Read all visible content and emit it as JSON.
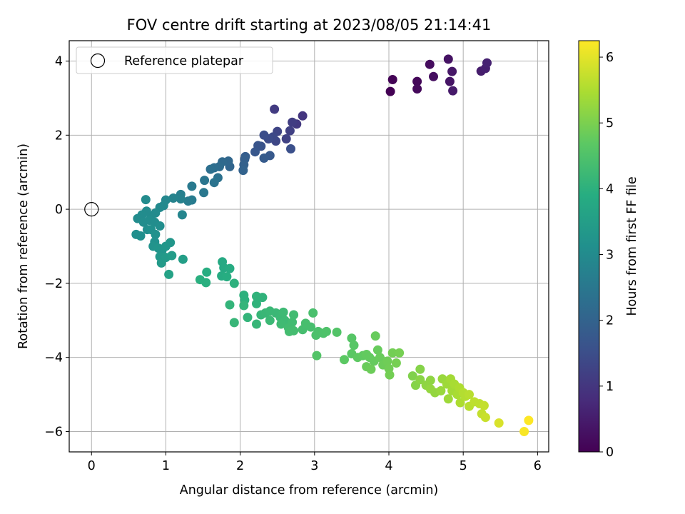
{
  "chart_data": {
    "type": "scatter",
    "title": "FOV centre drift starting at 2023/08/05 21:14:41",
    "xlabel": "Angular distance from reference (arcmin)",
    "ylabel": "Rotation from reference (arcmin)",
    "xlim": [
      -0.3,
      6.15
    ],
    "ylim": [
      -6.55,
      4.55
    ],
    "xticks": [
      0,
      1,
      2,
      3,
      4,
      5,
      6
    ],
    "yticks": [
      -6,
      -4,
      -2,
      0,
      2,
      4
    ],
    "xtick_labels": [
      "0",
      "1",
      "2",
      "3",
      "4",
      "5",
      "6"
    ],
    "ytick_labels": [
      "−6",
      "−4",
      "−2",
      "0",
      "2",
      "4"
    ],
    "grid": true,
    "legend": {
      "placement": "upper-left",
      "entries": [
        {
          "label": "Reference platepar",
          "marker": "open-circle"
        }
      ]
    },
    "reference_point": {
      "x": 0,
      "y": 0
    },
    "colorbar": {
      "label": "Hours from first FF file",
      "colormap": "viridis",
      "range": [
        0,
        6.25
      ],
      "ticks": [
        0,
        1,
        2,
        3,
        4,
        5,
        6
      ],
      "tick_labels": [
        "0",
        "1",
        "2",
        "3",
        "4",
        "5",
        "6"
      ]
    },
    "points": [
      {
        "x": 4.02,
        "y": 3.18,
        "t": 0.0
      },
      {
        "x": 4.05,
        "y": 3.5,
        "t": 0.05
      },
      {
        "x": 4.38,
        "y": 3.45,
        "t": 0.1
      },
      {
        "x": 4.38,
        "y": 3.25,
        "t": 0.15
      },
      {
        "x": 4.55,
        "y": 3.91,
        "t": 0.2
      },
      {
        "x": 4.6,
        "y": 3.58,
        "t": 0.25
      },
      {
        "x": 4.8,
        "y": 4.05,
        "t": 0.3
      },
      {
        "x": 4.82,
        "y": 3.45,
        "t": 0.35
      },
      {
        "x": 4.85,
        "y": 3.72,
        "t": 0.4
      },
      {
        "x": 4.86,
        "y": 3.2,
        "t": 0.45
      },
      {
        "x": 5.24,
        "y": 3.73,
        "t": 0.5
      },
      {
        "x": 5.3,
        "y": 3.8,
        "t": 0.55
      },
      {
        "x": 5.32,
        "y": 3.95,
        "t": 0.6
      },
      {
        "x": 2.84,
        "y": 2.52,
        "t": 1.0
      },
      {
        "x": 2.76,
        "y": 2.3,
        "t": 1.05
      },
      {
        "x": 2.46,
        "y": 2.7,
        "t": 1.1
      },
      {
        "x": 2.7,
        "y": 2.35,
        "t": 1.15
      },
      {
        "x": 2.67,
        "y": 2.12,
        "t": 1.2
      },
      {
        "x": 2.62,
        "y": 1.9,
        "t": 1.25
      },
      {
        "x": 2.5,
        "y": 2.1,
        "t": 1.3
      },
      {
        "x": 2.48,
        "y": 1.84,
        "t": 1.35
      },
      {
        "x": 2.44,
        "y": 1.95,
        "t": 1.4
      },
      {
        "x": 2.38,
        "y": 1.9,
        "t": 1.45
      },
      {
        "x": 2.32,
        "y": 2.0,
        "t": 1.5
      },
      {
        "x": 2.68,
        "y": 1.63,
        "t": 1.55
      },
      {
        "x": 2.28,
        "y": 1.7,
        "t": 1.6
      },
      {
        "x": 2.24,
        "y": 1.72,
        "t": 1.65
      },
      {
        "x": 2.2,
        "y": 1.55,
        "t": 1.7
      },
      {
        "x": 2.4,
        "y": 1.45,
        "t": 1.75
      },
      {
        "x": 2.32,
        "y": 1.38,
        "t": 1.8
      },
      {
        "x": 2.07,
        "y": 1.42,
        "t": 1.85
      },
      {
        "x": 2.06,
        "y": 1.35,
        "t": 1.9
      },
      {
        "x": 2.05,
        "y": 1.2,
        "t": 1.95
      },
      {
        "x": 2.04,
        "y": 1.05,
        "t": 2.0
      },
      {
        "x": 1.86,
        "y": 1.15,
        "t": 2.05
      },
      {
        "x": 1.84,
        "y": 1.3,
        "t": 2.1
      },
      {
        "x": 1.76,
        "y": 1.28,
        "t": 2.15
      },
      {
        "x": 1.72,
        "y": 1.15,
        "t": 2.2
      },
      {
        "x": 1.65,
        "y": 1.12,
        "t": 2.25
      },
      {
        "x": 1.6,
        "y": 1.08,
        "t": 2.3
      },
      {
        "x": 1.7,
        "y": 0.85,
        "t": 2.35
      },
      {
        "x": 1.65,
        "y": 0.72,
        "t": 2.4
      },
      {
        "x": 1.52,
        "y": 0.78,
        "t": 2.45
      },
      {
        "x": 1.51,
        "y": 0.45,
        "t": 2.5
      },
      {
        "x": 1.35,
        "y": 0.62,
        "t": 2.55
      },
      {
        "x": 1.35,
        "y": 0.25,
        "t": 2.6
      },
      {
        "x": 1.3,
        "y": 0.22,
        "t": 2.65
      },
      {
        "x": 1.2,
        "y": 0.4,
        "t": 2.7
      },
      {
        "x": 1.2,
        "y": 0.28,
        "t": 2.75
      },
      {
        "x": 1.1,
        "y": 0.3,
        "t": 2.8
      },
      {
        "x": 1.22,
        "y": -0.15,
        "t": 2.85
      },
      {
        "x": 1.0,
        "y": 0.25,
        "t": 2.9
      },
      {
        "x": 0.97,
        "y": 0.1,
        "t": 2.95
      },
      {
        "x": 0.92,
        "y": 0.05,
        "t": 2.95
      },
      {
        "x": 0.73,
        "y": 0.26,
        "t": 3.0
      },
      {
        "x": 0.86,
        "y": -0.1,
        "t": 3.0
      },
      {
        "x": 0.8,
        "y": -0.2,
        "t": 3.0
      },
      {
        "x": 0.74,
        "y": -0.05,
        "t": 3.0
      },
      {
        "x": 0.68,
        "y": -0.15,
        "t": 3.02
      },
      {
        "x": 0.62,
        "y": -0.25,
        "t": 3.02
      },
      {
        "x": 0.7,
        "y": -0.35,
        "t": 3.05
      },
      {
        "x": 0.78,
        "y": -0.3,
        "t": 3.05
      },
      {
        "x": 0.85,
        "y": -0.35,
        "t": 3.05
      },
      {
        "x": 0.92,
        "y": -0.45,
        "t": 3.08
      },
      {
        "x": 0.75,
        "y": -0.55,
        "t": 3.08
      },
      {
        "x": 0.6,
        "y": -0.68,
        "t": 3.1
      },
      {
        "x": 0.66,
        "y": -0.72,
        "t": 3.1
      },
      {
        "x": 0.8,
        "y": -0.55,
        "t": 3.12
      },
      {
        "x": 0.86,
        "y": -0.68,
        "t": 3.15
      },
      {
        "x": 0.85,
        "y": -0.88,
        "t": 3.15
      },
      {
        "x": 0.83,
        "y": -1.0,
        "t": 3.2
      },
      {
        "x": 0.9,
        "y": -1.05,
        "t": 3.25
      },
      {
        "x": 0.95,
        "y": -1.1,
        "t": 3.25
      },
      {
        "x": 1.0,
        "y": -1.0,
        "t": 3.3
      },
      {
        "x": 1.06,
        "y": -0.9,
        "t": 3.3
      },
      {
        "x": 0.92,
        "y": -1.28,
        "t": 3.35
      },
      {
        "x": 0.94,
        "y": -1.45,
        "t": 3.4
      },
      {
        "x": 1.0,
        "y": -1.3,
        "t": 3.4
      },
      {
        "x": 1.08,
        "y": -1.25,
        "t": 3.45
      },
      {
        "x": 1.23,
        "y": -1.35,
        "t": 3.5
      },
      {
        "x": 1.04,
        "y": -1.76,
        "t": 3.6
      },
      {
        "x": 1.76,
        "y": -1.42,
        "t": 3.8
      },
      {
        "x": 1.78,
        "y": -1.58,
        "t": 3.8
      },
      {
        "x": 1.86,
        "y": -1.6,
        "t": 3.85
      },
      {
        "x": 1.75,
        "y": -1.8,
        "t": 3.85
      },
      {
        "x": 1.82,
        "y": -1.82,
        "t": 3.9
      },
      {
        "x": 1.55,
        "y": -1.7,
        "t": 3.9
      },
      {
        "x": 1.46,
        "y": -1.9,
        "t": 3.95
      },
      {
        "x": 1.54,
        "y": -1.98,
        "t": 3.95
      },
      {
        "x": 1.92,
        "y": -2.0,
        "t": 4.0
      },
      {
        "x": 2.05,
        "y": -2.32,
        "t": 4.0
      },
      {
        "x": 2.06,
        "y": -2.45,
        "t": 4.0
      },
      {
        "x": 2.22,
        "y": -2.35,
        "t": 4.05
      },
      {
        "x": 2.3,
        "y": -2.38,
        "t": 4.05
      },
      {
        "x": 2.22,
        "y": -2.55,
        "t": 4.05
      },
      {
        "x": 2.05,
        "y": -2.6,
        "t": 4.1
      },
      {
        "x": 1.86,
        "y": -2.58,
        "t": 4.1
      },
      {
        "x": 2.1,
        "y": -2.92,
        "t": 4.1
      },
      {
        "x": 2.22,
        "y": -3.1,
        "t": 4.15
      },
      {
        "x": 1.92,
        "y": -3.06,
        "t": 4.15
      },
      {
        "x": 2.28,
        "y": -2.85,
        "t": 4.15
      },
      {
        "x": 2.34,
        "y": -2.8,
        "t": 4.18
      },
      {
        "x": 2.4,
        "y": -2.75,
        "t": 4.2
      },
      {
        "x": 2.48,
        "y": -2.8,
        "t": 4.2
      },
      {
        "x": 2.54,
        "y": -2.92,
        "t": 4.22
      },
      {
        "x": 2.4,
        "y": -3.0,
        "t": 4.22
      },
      {
        "x": 2.58,
        "y": -2.78,
        "t": 4.25
      },
      {
        "x": 2.6,
        "y": -3.0,
        "t": 4.25
      },
      {
        "x": 2.55,
        "y": -3.1,
        "t": 4.28
      },
      {
        "x": 2.7,
        "y": -3.05,
        "t": 4.3
      },
      {
        "x": 2.72,
        "y": -2.85,
        "t": 4.3
      },
      {
        "x": 2.65,
        "y": -3.2,
        "t": 4.32
      },
      {
        "x": 2.72,
        "y": -3.28,
        "t": 4.35
      },
      {
        "x": 2.66,
        "y": -3.3,
        "t": 4.35
      },
      {
        "x": 2.84,
        "y": -3.25,
        "t": 4.38
      },
      {
        "x": 2.88,
        "y": -3.08,
        "t": 4.4
      },
      {
        "x": 2.95,
        "y": -3.18,
        "t": 4.4
      },
      {
        "x": 2.98,
        "y": -2.8,
        "t": 4.42
      },
      {
        "x": 3.02,
        "y": -3.4,
        "t": 4.45
      },
      {
        "x": 3.05,
        "y": -3.3,
        "t": 4.45
      },
      {
        "x": 3.12,
        "y": -3.35,
        "t": 4.48
      },
      {
        "x": 3.16,
        "y": -3.3,
        "t": 4.5
      },
      {
        "x": 3.03,
        "y": -3.95,
        "t": 4.55
      },
      {
        "x": 3.3,
        "y": -3.32,
        "t": 4.55
      },
      {
        "x": 3.5,
        "y": -3.48,
        "t": 4.6
      },
      {
        "x": 3.53,
        "y": -3.67,
        "t": 4.62
      },
      {
        "x": 3.5,
        "y": -3.9,
        "t": 4.65
      },
      {
        "x": 3.4,
        "y": -4.06,
        "t": 4.68
      },
      {
        "x": 3.58,
        "y": -4.0,
        "t": 4.7
      },
      {
        "x": 3.65,
        "y": -3.95,
        "t": 4.72
      },
      {
        "x": 3.7,
        "y": -3.92,
        "t": 4.75
      },
      {
        "x": 3.74,
        "y": -4.0,
        "t": 4.75
      },
      {
        "x": 3.8,
        "y": -4.1,
        "t": 4.78
      },
      {
        "x": 3.82,
        "y": -3.42,
        "t": 4.8
      },
      {
        "x": 3.85,
        "y": -3.8,
        "t": 4.8
      },
      {
        "x": 3.88,
        "y": -4.0,
        "t": 4.82
      },
      {
        "x": 3.7,
        "y": -4.25,
        "t": 4.82
      },
      {
        "x": 3.76,
        "y": -4.32,
        "t": 4.85
      },
      {
        "x": 3.92,
        "y": -4.2,
        "t": 4.85
      },
      {
        "x": 3.98,
        "y": -4.1,
        "t": 4.88
      },
      {
        "x": 4.0,
        "y": -4.3,
        "t": 4.9
      },
      {
        "x": 4.01,
        "y": -4.47,
        "t": 4.92
      },
      {
        "x": 4.05,
        "y": -3.88,
        "t": 4.92
      },
      {
        "x": 4.14,
        "y": -3.88,
        "t": 4.95
      },
      {
        "x": 4.1,
        "y": -4.15,
        "t": 4.95
      },
      {
        "x": 4.32,
        "y": -4.5,
        "t": 5.05
      },
      {
        "x": 4.36,
        "y": -4.75,
        "t": 5.1
      },
      {
        "x": 4.42,
        "y": -4.32,
        "t": 5.1
      },
      {
        "x": 4.42,
        "y": -4.6,
        "t": 5.15
      },
      {
        "x": 4.5,
        "y": -4.75,
        "t": 5.2
      },
      {
        "x": 4.56,
        "y": -4.62,
        "t": 5.2
      },
      {
        "x": 4.56,
        "y": -4.85,
        "t": 5.25
      },
      {
        "x": 4.62,
        "y": -4.95,
        "t": 5.25
      },
      {
        "x": 4.7,
        "y": -4.9,
        "t": 5.3
      },
      {
        "x": 4.72,
        "y": -4.58,
        "t": 5.3
      },
      {
        "x": 4.78,
        "y": -4.72,
        "t": 5.35
      },
      {
        "x": 4.8,
        "y": -5.12,
        "t": 5.35
      },
      {
        "x": 4.83,
        "y": -4.58,
        "t": 5.4
      },
      {
        "x": 4.85,
        "y": -4.9,
        "t": 5.4
      },
      {
        "x": 4.88,
        "y": -4.72,
        "t": 5.45
      },
      {
        "x": 4.92,
        "y": -5.0,
        "t": 5.45
      },
      {
        "x": 4.95,
        "y": -4.82,
        "t": 5.5
      },
      {
        "x": 4.96,
        "y": -5.22,
        "t": 5.5
      },
      {
        "x": 5.0,
        "y": -4.95,
        "t": 5.55
      },
      {
        "x": 5.03,
        "y": -5.05,
        "t": 5.55
      },
      {
        "x": 5.08,
        "y": -5.0,
        "t": 5.6
      },
      {
        "x": 5.08,
        "y": -5.32,
        "t": 5.6
      },
      {
        "x": 5.15,
        "y": -5.2,
        "t": 5.65
      },
      {
        "x": 5.22,
        "y": -5.25,
        "t": 5.65
      },
      {
        "x": 5.25,
        "y": -5.52,
        "t": 5.7
      },
      {
        "x": 5.28,
        "y": -5.3,
        "t": 5.7
      },
      {
        "x": 5.3,
        "y": -5.62,
        "t": 5.75
      },
      {
        "x": 5.48,
        "y": -5.77,
        "t": 5.9
      },
      {
        "x": 5.82,
        "y": -6.0,
        "t": 6.2
      },
      {
        "x": 5.88,
        "y": -5.7,
        "t": 6.25
      }
    ]
  }
}
